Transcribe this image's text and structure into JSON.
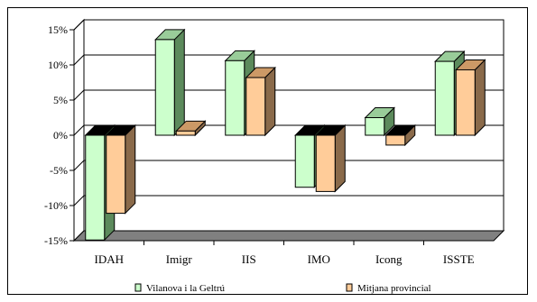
{
  "chart_data": {
    "type": "bar",
    "title": "",
    "xlabel": "",
    "ylabel": "",
    "categories": [
      "IDAH",
      "Imigr",
      "IIS",
      "IMO",
      "Icong",
      "ISSTE"
    ],
    "series": [
      {
        "name": "Vilanova i la Geltrú",
        "values": [
          -14.9,
          13.6,
          10.6,
          -7.4,
          2.5,
          10.5
        ]
      },
      {
        "name": "Mitjana provincial",
        "values": [
          -11.1,
          0.6,
          8.2,
          -8.0,
          -1.4,
          9.3
        ]
      }
    ],
    "ylim": [
      -15,
      15
    ],
    "ytick_values": [
      -15,
      -10,
      -5,
      0,
      5,
      10,
      15
    ],
    "ytick_labels": [
      "-15%",
      "-10%",
      "-5%",
      "0%",
      "5%",
      "10%",
      "15%"
    ],
    "grid": true,
    "legend_position": "bottom",
    "colors": {
      "series1_front": "#CCFFCC",
      "series1_side": "#5C8A5C",
      "series1_top": "#99CC99",
      "series2_front": "#FFCC99",
      "series2_side": "#8A6A4A",
      "series2_top": "#CC9966",
      "floor": "#808080",
      "axis": "#000000"
    }
  }
}
